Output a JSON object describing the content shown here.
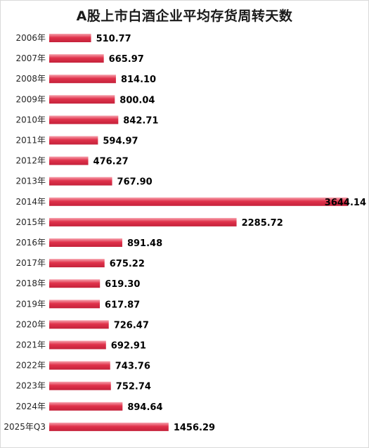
{
  "chart_data": {
    "type": "bar",
    "orientation": "horizontal",
    "title": "A股上市白酒企业平均存货周转天数",
    "xlabel": "",
    "ylabel": "",
    "grid": false,
    "legend": "none",
    "bar_color": "#e0324b",
    "categories": [
      "2006年",
      "2007年",
      "2008年",
      "2009年",
      "2010年",
      "2011年",
      "2012年",
      "2013年",
      "2014年",
      "2015年",
      "2016年",
      "2017年",
      "2018年",
      "2019年",
      "2020年",
      "2021年",
      "2022年",
      "2023年",
      "2024年",
      "2025年Q3"
    ],
    "values": [
      510.77,
      665.97,
      814.1,
      800.04,
      842.71,
      594.97,
      476.27,
      767.9,
      3644.14,
      2285.72,
      891.48,
      675.22,
      619.3,
      617.87,
      726.47,
      692.91,
      743.76,
      752.74,
      894.64,
      1456.29
    ],
    "value_labels": [
      "510.77",
      "665.97",
      "814.10",
      "800.04",
      "842.71",
      "594.97",
      "476.27",
      "767.90",
      "3644.14",
      "2285.72",
      "891.48",
      "675.22",
      "619.30",
      "617.87",
      "726.47",
      "692.91",
      "743.76",
      "752.74",
      "894.64",
      "1456.29"
    ],
    "xlim": [
      0,
      3644.14
    ]
  }
}
